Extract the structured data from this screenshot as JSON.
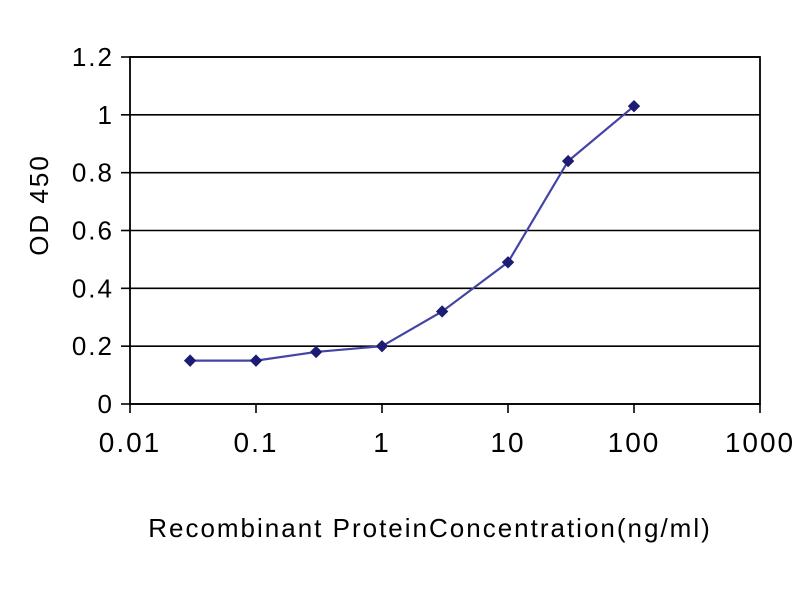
{
  "chart_data": {
    "type": "line",
    "title": "",
    "xlabel": "Recombinant ProteinConcentration(ng/ml)",
    "ylabel": "OD 450",
    "x_scale": "log",
    "xlim": [
      0.01,
      1000
    ],
    "ylim": [
      0,
      1.2
    ],
    "x": [
      0.03,
      0.1,
      0.3,
      1,
      3,
      10,
      30,
      100
    ],
    "y": [
      0.15,
      0.15,
      0.18,
      0.2,
      0.32,
      0.49,
      0.84,
      1.03
    ],
    "x_ticks": [
      0.01,
      0.1,
      1,
      10,
      100,
      1000
    ],
    "x_tick_labels": [
      "0.01",
      "0.1",
      "1",
      "10",
      "100",
      "1000"
    ],
    "y_ticks": [
      0,
      0.2,
      0.4,
      0.6,
      0.8,
      1,
      1.2
    ],
    "y_tick_labels": [
      "0",
      "0.2",
      "0.4",
      "0.6",
      "0.8",
      "1",
      "1.2"
    ],
    "grid": "horizontal",
    "legend": "none",
    "marker": "diamond",
    "line_color": "#4444A4",
    "marker_color": "#1C1C75",
    "axis_color": "#000000",
    "grid_color": "#000000",
    "background_color": "#ffffff"
  }
}
